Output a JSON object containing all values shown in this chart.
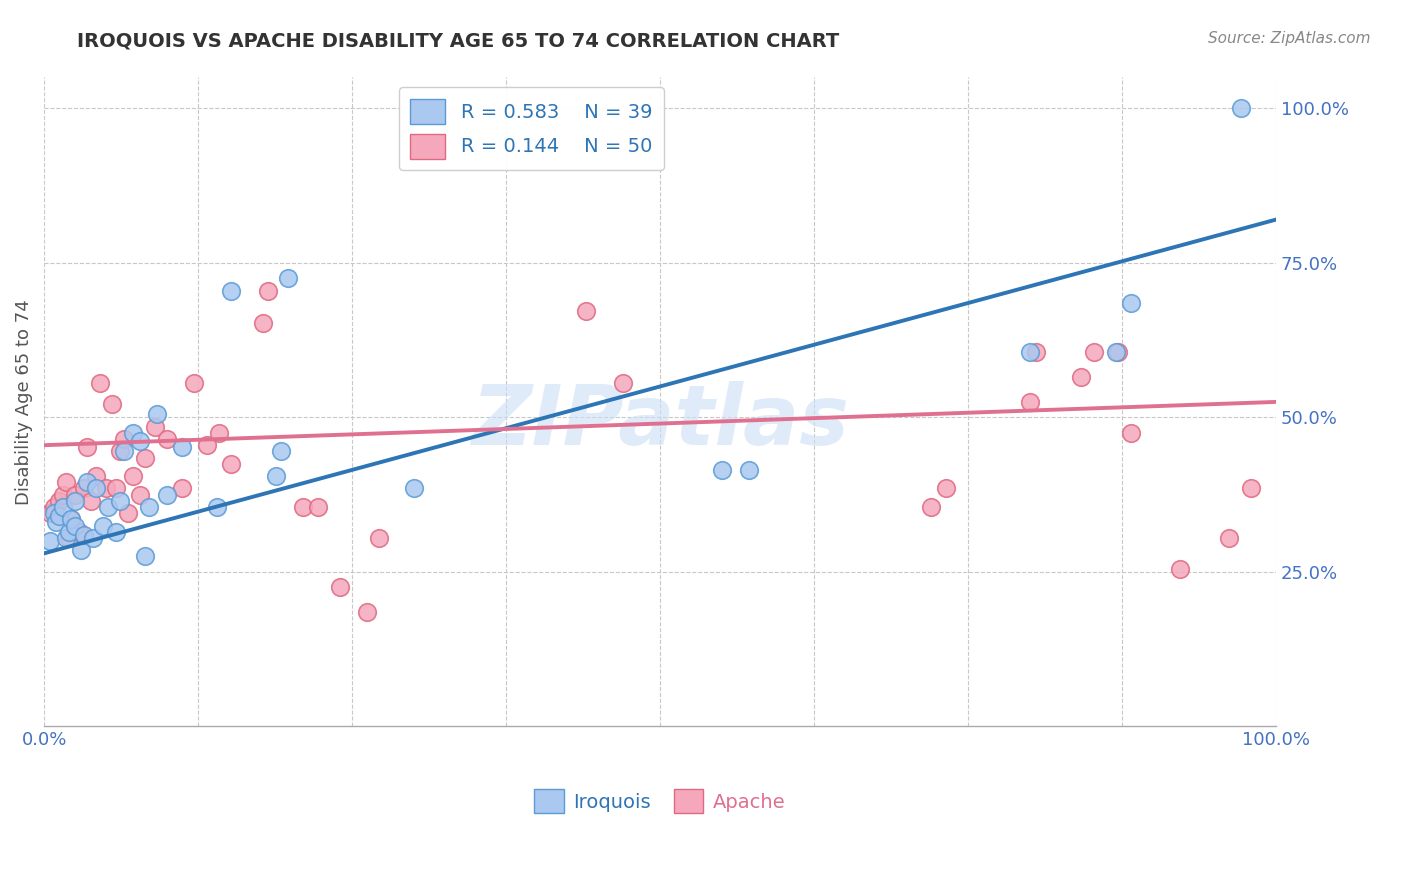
{
  "title": "IROQUOIS VS APACHE DISABILITY AGE 65 TO 74 CORRELATION CHART",
  "source": "Source: ZipAtlas.com",
  "ylabel": "Disability Age 65 to 74",
  "xlim": [
    0.0,
    1.0
  ],
  "ylim": [
    0.0,
    1.05
  ],
  "yticks": [
    0.25,
    0.5,
    0.75,
    1.0
  ],
  "ytick_labels": [
    "25.0%",
    "50.0%",
    "75.0%",
    "100.0%"
  ],
  "xticks": [
    0.0,
    0.125,
    0.25,
    0.375,
    0.5,
    0.625,
    0.75,
    0.875,
    1.0
  ],
  "iroquois_color": "#aac8f0",
  "iroquois_edge_color": "#5b9bd5",
  "apache_color": "#f5a8bc",
  "apache_edge_color": "#e06880",
  "blue_line_color": "#2e75b6",
  "pink_line_color": "#e07090",
  "R_iroquois": 0.583,
  "N_iroquois": 39,
  "R_apache": 0.144,
  "N_apache": 50,
  "watermark": "ZIPatlas",
  "background_color": "#ffffff",
  "grid_color": "#c8c8c8",
  "tick_color": "#4472c4",
  "iroquois_x": [
    0.005,
    0.008,
    0.01,
    0.012,
    0.015,
    0.018,
    0.02,
    0.022,
    0.025,
    0.025,
    0.03,
    0.032,
    0.035,
    0.04,
    0.042,
    0.048,
    0.052,
    0.058,
    0.062,
    0.065,
    0.072,
    0.078,
    0.082,
    0.085,
    0.092,
    0.1,
    0.112,
    0.14,
    0.152,
    0.188,
    0.192,
    0.198,
    0.3,
    0.55,
    0.572,
    0.8,
    0.87,
    0.882,
    0.972
  ],
  "iroquois_y": [
    0.3,
    0.345,
    0.33,
    0.34,
    0.355,
    0.305,
    0.315,
    0.335,
    0.325,
    0.365,
    0.285,
    0.31,
    0.395,
    0.305,
    0.385,
    0.325,
    0.355,
    0.315,
    0.365,
    0.445,
    0.475,
    0.462,
    0.275,
    0.355,
    0.505,
    0.375,
    0.452,
    0.355,
    0.705,
    0.405,
    0.445,
    0.725,
    0.385,
    0.415,
    0.415,
    0.605,
    0.605,
    0.685,
    1.0
  ],
  "apache_x": [
    0.005,
    0.008,
    0.012,
    0.015,
    0.018,
    0.02,
    0.022,
    0.025,
    0.028,
    0.032,
    0.035,
    0.038,
    0.042,
    0.045,
    0.05,
    0.055,
    0.058,
    0.062,
    0.065,
    0.068,
    0.072,
    0.078,
    0.082,
    0.09,
    0.1,
    0.112,
    0.122,
    0.132,
    0.142,
    0.152,
    0.178,
    0.182,
    0.21,
    0.222,
    0.24,
    0.262,
    0.272,
    0.44,
    0.47,
    0.72,
    0.732,
    0.8,
    0.805,
    0.842,
    0.852,
    0.872,
    0.882,
    0.922,
    0.962,
    0.98
  ],
  "apache_y": [
    0.345,
    0.355,
    0.365,
    0.375,
    0.395,
    0.305,
    0.335,
    0.375,
    0.315,
    0.385,
    0.452,
    0.365,
    0.405,
    0.555,
    0.385,
    0.522,
    0.385,
    0.445,
    0.465,
    0.345,
    0.405,
    0.375,
    0.435,
    0.485,
    0.465,
    0.385,
    0.555,
    0.455,
    0.475,
    0.425,
    0.652,
    0.705,
    0.355,
    0.355,
    0.225,
    0.185,
    0.305,
    0.672,
    0.555,
    0.355,
    0.385,
    0.525,
    0.605,
    0.565,
    0.605,
    0.605,
    0.475,
    0.255,
    0.305,
    0.385
  ],
  "blue_line_x": [
    0.0,
    1.0
  ],
  "blue_line_y": [
    0.28,
    0.82
  ],
  "pink_line_x": [
    0.0,
    1.0
  ],
  "pink_line_y": [
    0.455,
    0.525
  ]
}
